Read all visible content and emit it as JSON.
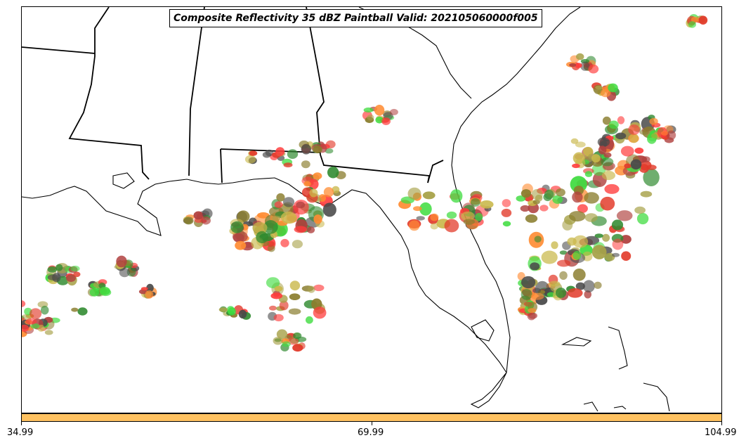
{
  "title": "Composite Reflectivity 35 dBZ Paintball Valid: 202105060000f005",
  "colorbar": {
    "ticks": [
      "34.99",
      "69.99",
      "104.99"
    ],
    "color": "#ffc261"
  },
  "paintball_colors": [
    "#ff3b3b",
    "#e23a2a",
    "#ff8c33",
    "#3fdc3f",
    "#2f8a2f",
    "#4a4a4a",
    "#a8a24a",
    "#8a7d2e",
    "#b0413f",
    "#c9b84a"
  ],
  "background": "#ffffff",
  "line_color": "#000000"
}
